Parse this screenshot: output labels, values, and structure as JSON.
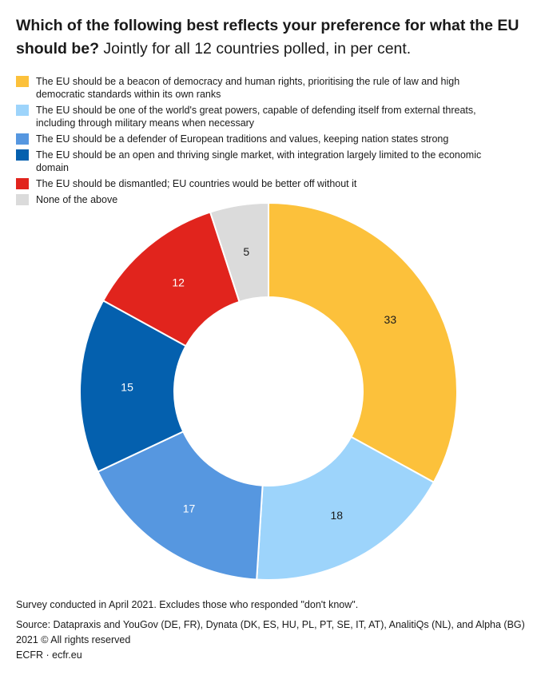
{
  "title": {
    "bold": "Which of the following best reflects your preference for what the EU should be?",
    "sub": "Jointly for all 12 countries polled, in per cent."
  },
  "chart_data": {
    "type": "pie",
    "donut": true,
    "title": "Which of the following best reflects your preference for what the EU should be?",
    "subtitle": "Jointly for all 12 countries polled, in per cent.",
    "legend_position": "top",
    "categories": [
      "The EU should be a beacon of democracy and human rights, prioritising the rule of law and high democratic standards within its own ranks",
      "The EU should be one of the world's great powers, capable of defending itself from external threats, including through military means when necessary",
      "The EU should be a defender of European traditions and values, keeping nation states strong",
      "The EU should be an open and thriving single market, with integration largely limited to the economic domain",
      "The EU should be dismantled; EU countries would be better off without it",
      "None of the above"
    ],
    "values": [
      33,
      18,
      17,
      15,
      12,
      5
    ],
    "colors": [
      "#FCC13B",
      "#9DD4FB",
      "#5697E0",
      "#0460AE",
      "#E1241D",
      "#DBDBDB"
    ],
    "label_colors": [
      "#1a1a1a",
      "#1a1a1a",
      "#ffffff",
      "#ffffff",
      "#ffffff",
      "#1a1a1a"
    ]
  },
  "footer": {
    "note": "Survey conducted in April 2021. Excludes those who responded \"don't know\".",
    "source": "Source: Datapraxis and YouGov (DE, FR), Dynata (DK, ES, HU, PL, PT, SE, IT, AT), AnalitiQs (NL), and Alpha (BG) 2021 © All rights reserved",
    "credit": "ECFR · ecfr.eu"
  }
}
